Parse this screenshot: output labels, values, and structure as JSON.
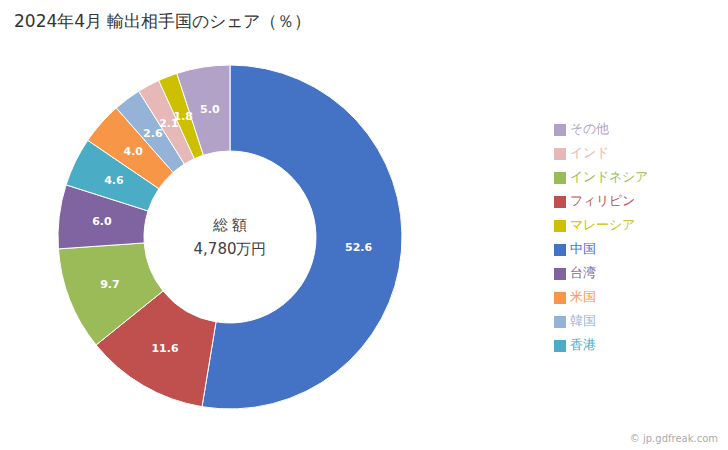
{
  "chart_data": {
    "type": "pie",
    "title": "2024年4月 輸出相手国のシェア（％）",
    "categories": [
      "中国",
      "フィリピン",
      "インドネシア",
      "台湾",
      "香港",
      "米国",
      "韓国",
      "インド",
      "マレーシア",
      "その他"
    ],
    "values": [
      52.6,
      11.6,
      9.7,
      6.0,
      4.6,
      4.0,
      2.6,
      2.1,
      1.8,
      5.0
    ],
    "value_labels": [
      "52.6",
      "11.6",
      "9.7",
      "6.0",
      "4.6",
      "4.0",
      "2.6",
      "2.1",
      "1.8",
      "5.0"
    ],
    "colors": [
      "#4472C4",
      "#C0504D",
      "#9BBB59",
      "#8064A2",
      "#4BACC6",
      "#F79646",
      "#95B3D7",
      "#E6B8B7",
      "#CCC000",
      "#B2A2C7"
    ],
    "data_labels": true,
    "legend": "right",
    "annotations": [
      "総 額",
      "4,780万円",
      "© jp.gdfreak.com"
    ]
  }
}
